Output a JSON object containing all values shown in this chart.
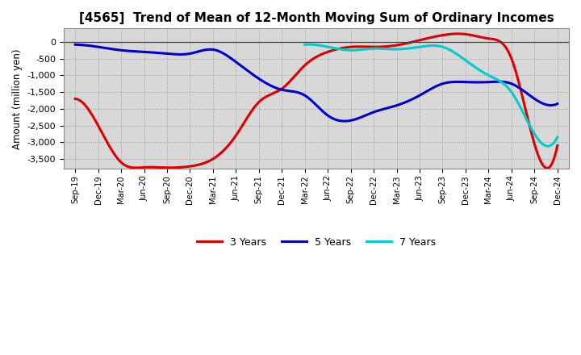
{
  "title": "[4565]  Trend of Mean of 12-Month Moving Sum of Ordinary Incomes",
  "ylabel": "Amount (million yen)",
  "background_color": "#ffffff",
  "plot_bg_color": "#d8d8d8",
  "ylim": [
    -3800,
    400
  ],
  "yticks": [
    0,
    -500,
    -1000,
    -1500,
    -2000,
    -2500,
    -3000,
    -3500
  ],
  "x_labels": [
    "Sep-19",
    "Dec-19",
    "Mar-20",
    "Jun-20",
    "Sep-20",
    "Dec-20",
    "Mar-21",
    "Jun-21",
    "Sep-21",
    "Dec-21",
    "Mar-22",
    "Jun-22",
    "Sep-22",
    "Dec-22",
    "Mar-23",
    "Jun-23",
    "Sep-23",
    "Dec-23",
    "Mar-24",
    "Jun-24",
    "Sep-24",
    "Dec-24"
  ],
  "series_3y": [
    -1700,
    -2500,
    -3600,
    -3750,
    -3760,
    -3720,
    -3500,
    -2800,
    -1800,
    -1400,
    -700,
    -300,
    -150,
    -150,
    -100,
    50,
    200,
    230,
    100,
    -500,
    -3050,
    -3100
  ],
  "series_5y": [
    -80,
    -150,
    -250,
    -300,
    -350,
    -350,
    -230,
    -600,
    -1100,
    -1430,
    -1600,
    -2200,
    -2350,
    -2100,
    -1900,
    -1600,
    -1250,
    -1200,
    -1200,
    -1250,
    -1700,
    -1850
  ],
  "series_7y": [
    null,
    null,
    null,
    null,
    null,
    null,
    null,
    null,
    null,
    null,
    -80,
    -150,
    -250,
    -200,
    -220,
    -150,
    -150,
    -550,
    -1000,
    -1500,
    -2750,
    -2850
  ],
  "series_10y": [
    null,
    null,
    null,
    null,
    null,
    null,
    null,
    null,
    null,
    null,
    null,
    null,
    null,
    null,
    null,
    null,
    null,
    null,
    null,
    null,
    null,
    null
  ],
  "color_3y": "#dd0000",
  "color_5y": "#0000cc",
  "color_7y": "#00cccc",
  "color_10y": "#009900",
  "linewidth": 2.2
}
